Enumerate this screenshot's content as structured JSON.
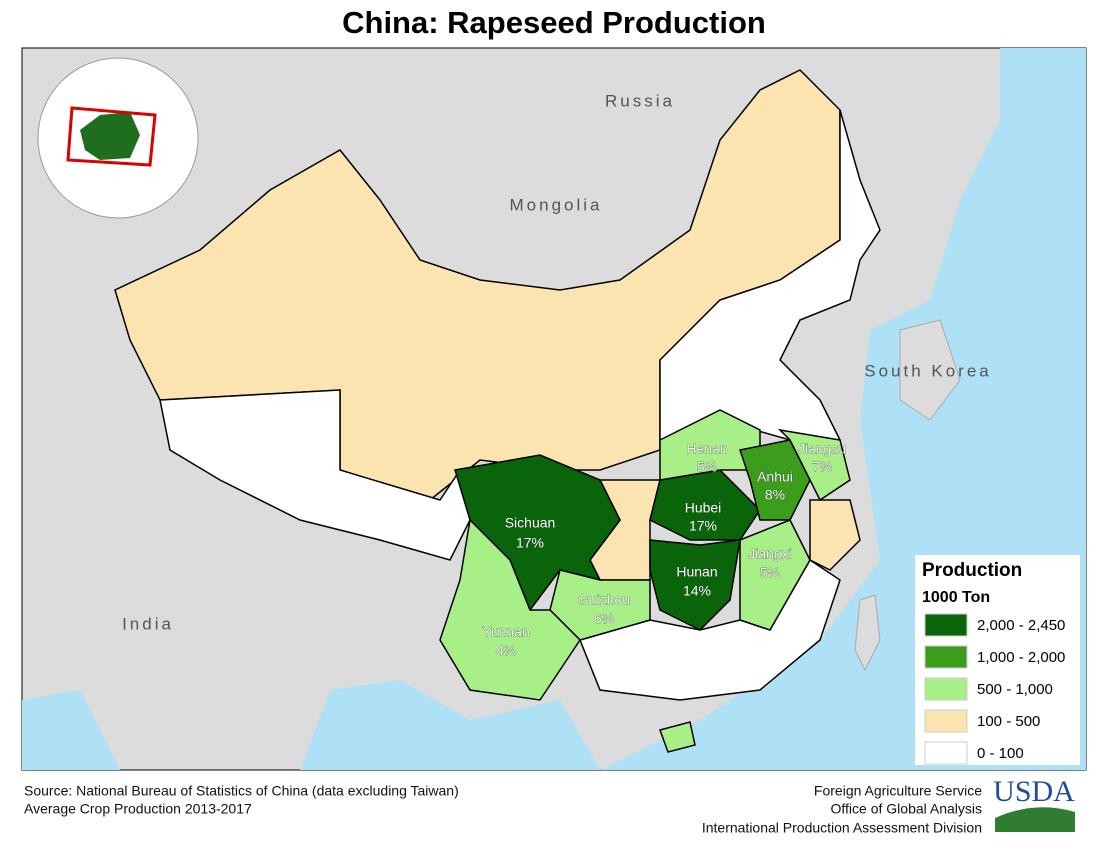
{
  "title": "China: Rapeseed Production",
  "countries": [
    "Russia",
    "Mongolia",
    "South Korea",
    "India"
  ],
  "provinces": [
    {
      "name": "Sichuan",
      "share": "17%"
    },
    {
      "name": "Hubei",
      "share": "17%"
    },
    {
      "name": "Hunan",
      "share": "14%"
    },
    {
      "name": "Anhui",
      "share": "8%"
    },
    {
      "name": "Jiangsu",
      "share": "7%"
    },
    {
      "name": "Guizhou",
      "share": "6%"
    },
    {
      "name": "Henan",
      "share": "5%"
    },
    {
      "name": "Jiangxi",
      "share": "5%"
    },
    {
      "name": "Yunnan",
      "share": "4%"
    }
  ],
  "legend": {
    "title": "Production",
    "unit": "1000 Ton",
    "classes": [
      {
        "label": "2,000 - 2,450",
        "color": "#0a650a"
      },
      {
        "label": "1,000 - 2,000",
        "color": "#3c9c1c"
      },
      {
        "label": "500 - 1,000",
        "color": "#a8ef88"
      },
      {
        "label": "100 - 500",
        "color": "#fce4b0"
      },
      {
        "label": "0 - 100",
        "color": "#ffffff"
      }
    ]
  },
  "source": [
    "Source: National Bureau of Statistics of China (data excluding Taiwan)",
    "Average Crop Production 2013-2017"
  ],
  "credits": [
    "Foreign Agriculture Service",
    "Office of Global Analysis",
    "International Production Assessment Division"
  ],
  "logo": "USDA"
}
